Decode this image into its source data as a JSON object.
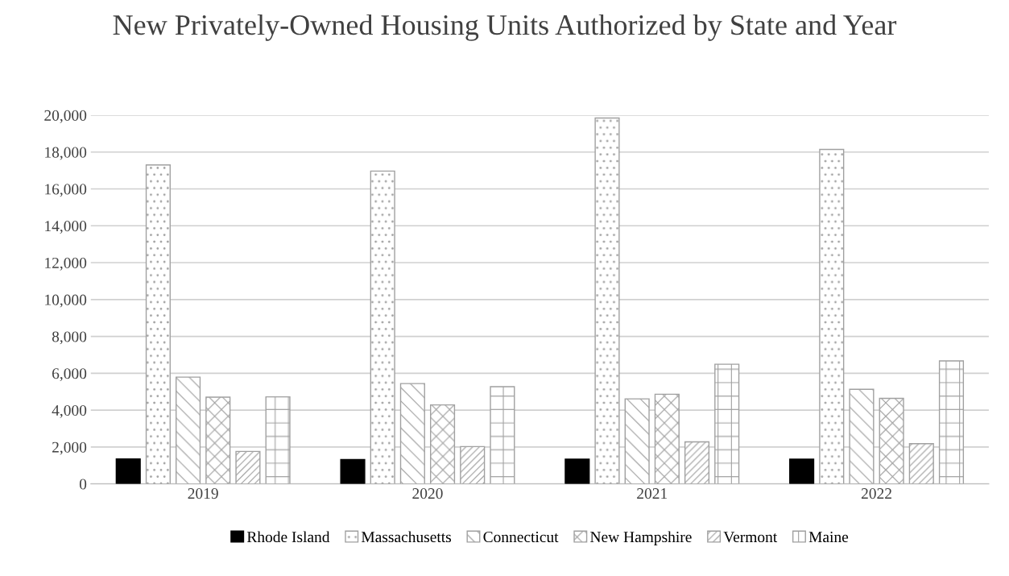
{
  "chart_data": {
    "type": "bar",
    "title": "New Privately-Owned Housing Units Authorized by State and Year",
    "categories": [
      "2019",
      "2020",
      "2021",
      "2022"
    ],
    "series": [
      {
        "name": "Rhode Island",
        "color": "#000000",
        "values": [
          1350,
          1320,
          1340,
          1340
        ]
      },
      {
        "name": "Massachusetts",
        "color": "#a0a0a0",
        "values": [
          17300,
          16970,
          19850,
          18140
        ]
      },
      {
        "name": "Connecticut",
        "color": "#a0a0a0",
        "values": [
          5790,
          5440,
          4610,
          5130
        ]
      },
      {
        "name": "New Hampshire",
        "color": "#a0a0a0",
        "values": [
          4700,
          4280,
          4860,
          4640
        ]
      },
      {
        "name": "Vermont",
        "color": "#a0a0a0",
        "values": [
          1760,
          2020,
          2280,
          2180
        ]
      },
      {
        "name": "Maine",
        "color": "#a0a0a0",
        "values": [
          4720,
          5270,
          6490,
          6670
        ]
      }
    ],
    "ylim": [
      0,
      20000
    ],
    "yticks": [
      {
        "value": 0,
        "label": "0"
      },
      {
        "value": 2000,
        "label": "2,000"
      },
      {
        "value": 4000,
        "label": "4,000"
      },
      {
        "value": 6000,
        "label": "6,000"
      },
      {
        "value": 8000,
        "label": "8,000"
      },
      {
        "value": 10000,
        "label": "10,000"
      },
      {
        "value": 12000,
        "label": "12,000"
      },
      {
        "value": 14000,
        "label": "14,000"
      },
      {
        "value": 16000,
        "label": "16,000"
      },
      {
        "value": 18000,
        "label": "18,000"
      },
      {
        "value": 20000,
        "label": "20,000"
      }
    ],
    "grid": "y",
    "legend": "bottom"
  }
}
